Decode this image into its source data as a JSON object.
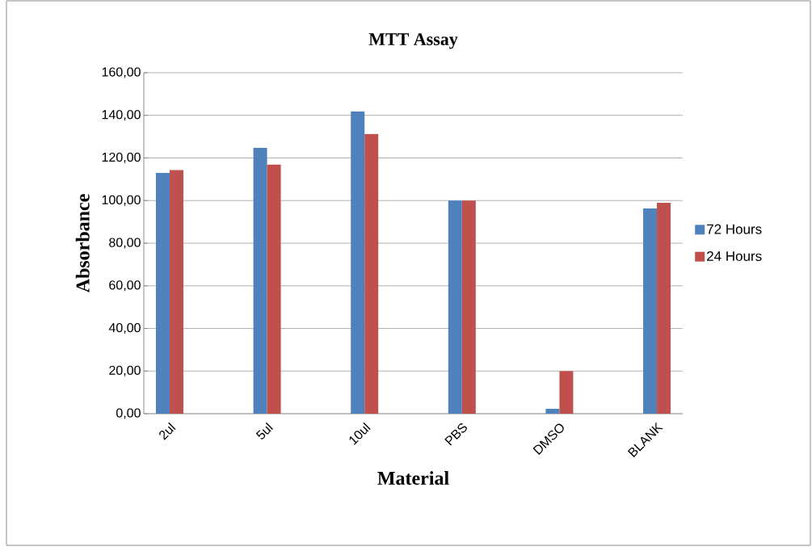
{
  "chart_data": {
    "type": "bar",
    "title": "MTT Assay",
    "xlabel": "Material",
    "ylabel": "Absorbance",
    "categories": [
      "2ul",
      "5ul",
      "10ul",
      "PBS",
      "DMSO",
      "BLANK"
    ],
    "series": [
      {
        "name": "72 Hours",
        "color": "#4f81bd",
        "values": [
          113.0,
          124.7,
          141.8,
          100.0,
          2.3,
          96.3
        ]
      },
      {
        "name": "24 Hours",
        "color": "#c0504d",
        "values": [
          114.3,
          116.9,
          131.3,
          100.0,
          20.0,
          99.0
        ]
      }
    ],
    "ylim": [
      0,
      160
    ],
    "yticks": [
      {
        "value": 0,
        "label": "0,00"
      },
      {
        "value": 20,
        "label": "20,00"
      },
      {
        "value": 40,
        "label": "40,00"
      },
      {
        "value": 60,
        "label": "60,00"
      },
      {
        "value": 80,
        "label": "80,00"
      },
      {
        "value": 100,
        "label": "100,00"
      },
      {
        "value": 120,
        "label": "120,00"
      },
      {
        "value": 140,
        "label": "140,00"
      },
      {
        "value": 160,
        "label": "160,00"
      }
    ],
    "grid": "y",
    "legend": "right"
  }
}
